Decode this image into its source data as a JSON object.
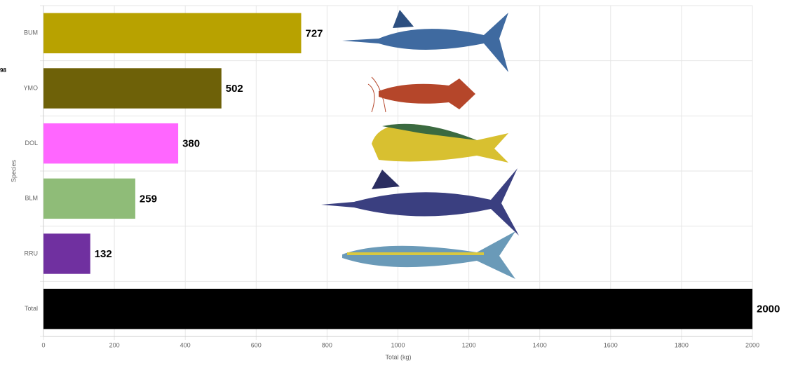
{
  "chart_data": {
    "type": "bar",
    "orientation": "horizontal",
    "side_label": "98",
    "x_label": "Total (kg)",
    "y_label": "Species",
    "categories": [
      "BUM",
      "YMO",
      "DOL",
      "BLM",
      "RRU",
      "Total"
    ],
    "values": [
      727,
      502,
      380,
      259,
      132,
      2000
    ],
    "colors": [
      "#b8a200",
      "#6e6108",
      "#ff66ff",
      "#8fbc78",
      "#7030a0",
      "#000000"
    ],
    "xlim": [
      0,
      2000
    ],
    "xticks": [
      0,
      200,
      400,
      600,
      800,
      1000,
      1200,
      1400,
      1600,
      1800,
      2000
    ],
    "grid": true
  }
}
